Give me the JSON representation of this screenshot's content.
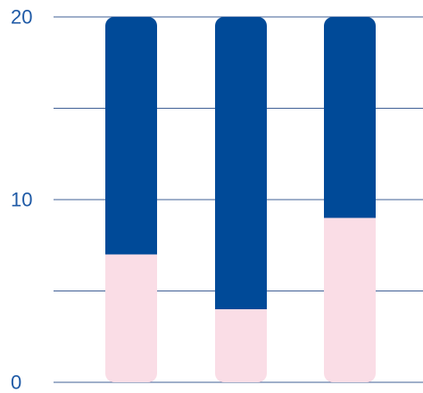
{
  "chart_data": {
    "type": "bar",
    "stacked": true,
    "title": "",
    "xlabel": "",
    "ylabel": "",
    "categories": [
      "",
      "",
      ""
    ],
    "series": [
      {
        "values": [
          7,
          4,
          9
        ]
      },
      {
        "values": [
          13,
          16,
          11
        ]
      }
    ],
    "ylim": [
      0,
      20
    ],
    "yticks": [
      0,
      5,
      10,
      15,
      20
    ],
    "ytick_labels": [
      "0",
      "",
      "10",
      "",
      "20"
    ],
    "grid": true,
    "legend": "none",
    "colors": {
      "series": [
        "#fadde6",
        "#004a98"
      ],
      "grid": "#3f5f95",
      "tick_text": "#1f5aa6"
    }
  }
}
